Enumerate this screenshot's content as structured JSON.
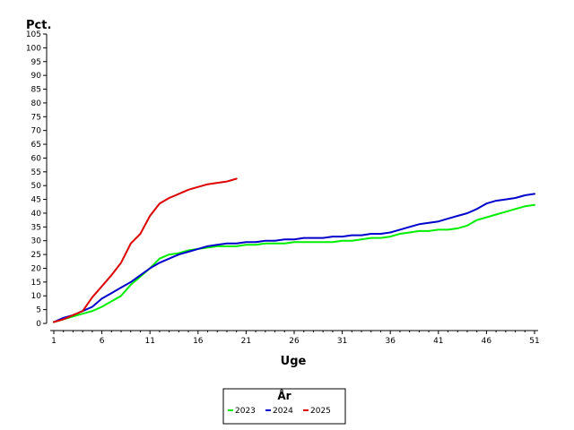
{
  "chart_data": {
    "type": "line",
    "title": "",
    "xlabel": "Uge",
    "ylabel": "Pct.",
    "xlim": [
      1,
      51
    ],
    "ylim": [
      0,
      105
    ],
    "x_ticks": [
      1,
      6,
      11,
      16,
      21,
      26,
      31,
      36,
      41,
      46,
      51
    ],
    "y_ticks": [
      0,
      5,
      10,
      15,
      20,
      25,
      30,
      35,
      40,
      45,
      50,
      55,
      60,
      65,
      70,
      75,
      80,
      85,
      90,
      95,
      100,
      105
    ],
    "legend": {
      "title": "År",
      "placement": "bottom-center"
    },
    "series": [
      {
        "name": "2023",
        "color": "#00ee00",
        "x": [
          1,
          2,
          3,
          4,
          5,
          6,
          7,
          8,
          9,
          10,
          11,
          12,
          13,
          14,
          15,
          16,
          17,
          18,
          19,
          20,
          21,
          22,
          23,
          24,
          25,
          26,
          27,
          28,
          29,
          30,
          31,
          32,
          33,
          34,
          35,
          36,
          37,
          38,
          39,
          40,
          41,
          42,
          43,
          44,
          45,
          46,
          47,
          48,
          49,
          50,
          51
        ],
        "values": [
          0.5,
          1.5,
          2.5,
          3.5,
          4.5,
          6,
          8,
          10,
          14,
          17,
          20,
          23.5,
          25,
          25.5,
          26.5,
          27,
          27.5,
          28,
          28,
          28,
          28.5,
          28.5,
          29,
          29,
          29,
          29.5,
          29.5,
          29.5,
          29.5,
          29.5,
          30,
          30,
          30.5,
          31,
          31,
          31.5,
          32.5,
          33,
          33.5,
          33.5,
          34,
          34,
          34.5,
          35.5,
          37.5,
          38.5,
          39.5,
          40.5,
          41.5,
          42.5,
          43
        ]
      },
      {
        "name": "2024",
        "color": "#0000cc",
        "x": [
          1,
          2,
          3,
          4,
          5,
          6,
          7,
          8,
          9,
          10,
          11,
          12,
          13,
          14,
          15,
          16,
          17,
          18,
          19,
          20,
          21,
          22,
          23,
          24,
          25,
          26,
          27,
          28,
          29,
          30,
          31,
          32,
          33,
          34,
          35,
          36,
          37,
          38,
          39,
          40,
          41,
          42,
          43,
          44,
          45,
          46,
          47,
          48,
          49,
          50,
          51
        ],
        "values": [
          0.5,
          2,
          3,
          4.5,
          6,
          9,
          11,
          13,
          15,
          17.5,
          20,
          22,
          23.5,
          25,
          26,
          27,
          28,
          28.5,
          29,
          29,
          29.5,
          29.5,
          30,
          30,
          30.5,
          30.5,
          31,
          31,
          31,
          31.5,
          31.5,
          32,
          32,
          32.5,
          32.5,
          33,
          34,
          35,
          36,
          36.5,
          37,
          38,
          39,
          40,
          41.5,
          43.5,
          44.5,
          45,
          45.5,
          46.5,
          47
        ]
      },
      {
        "name": "2025",
        "color": "#dd0000",
        "x": [
          1,
          2,
          3,
          4,
          5,
          6,
          7,
          8,
          9,
          10,
          11,
          12,
          13,
          14,
          15,
          16,
          17,
          18,
          19,
          20
        ],
        "values": [
          0.5,
          1.5,
          3,
          4.5,
          9.5,
          13.5,
          17.5,
          22,
          29,
          32.5,
          39,
          43.5,
          45.5,
          47,
          48.5,
          49.5,
          50.5,
          51,
          51.5,
          52.5
        ]
      }
    ]
  }
}
